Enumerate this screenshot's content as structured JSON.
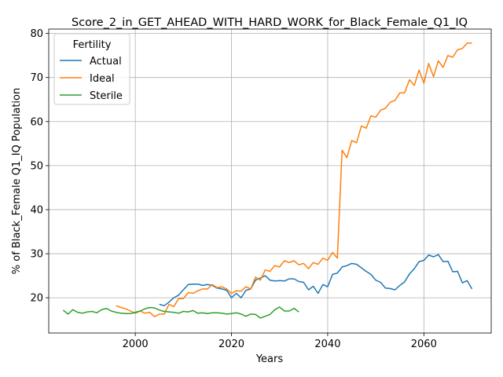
{
  "chart_data": {
    "type": "line",
    "title": "Score_2_in_GET_AHEAD_WITH_HARD_WORK_for_Black_Female_Q1_IQ",
    "xlabel": "Years",
    "ylabel": "% of Black_Female Q1_IQ Population",
    "xlim": [
      1982,
      2074
    ],
    "ylim": [
      12,
      81
    ],
    "xticks": [
      2000,
      2020,
      2040,
      2060
    ],
    "yticks": [
      20,
      30,
      40,
      50,
      60,
      70,
      80
    ],
    "grid": true,
    "legend": {
      "title": "Fertility",
      "placement": "top-left"
    },
    "series": [
      {
        "name": "Actual",
        "color": "#1f77b4",
        "x": [
          2005,
          2006,
          2007,
          2008,
          2009,
          2010,
          2011,
          2012,
          2013,
          2014,
          2015,
          2016,
          2017,
          2018,
          2019,
          2020,
          2021,
          2022,
          2023,
          2024,
          2025,
          2026,
          2027,
          2028,
          2029,
          2030,
          2031,
          2032,
          2033,
          2034,
          2035,
          2036,
          2037,
          2038,
          2039,
          2040,
          2041,
          2042,
          2043,
          2044,
          2045,
          2046,
          2047,
          2048,
          2049,
          2050,
          2051,
          2052,
          2053,
          2054,
          2055,
          2056,
          2057,
          2058,
          2059,
          2060,
          2061,
          2062,
          2063,
          2064,
          2065,
          2066,
          2067,
          2068,
          2069,
          2070
        ],
        "y": [
          18.5,
          18.2,
          19.0,
          20.0,
          20.6,
          21.8,
          23.0,
          23.1,
          23.1,
          22.8,
          23.0,
          22.8,
          22.2,
          22.0,
          21.7,
          20.0,
          21.0,
          20.0,
          21.7,
          22.0,
          24.0,
          24.5,
          25.0,
          24.0,
          23.8,
          23.9,
          23.8,
          24.3,
          24.3,
          23.7,
          23.5,
          21.8,
          22.6,
          21.0,
          23.0,
          22.5,
          25.3,
          25.6,
          27.0,
          27.3,
          27.8,
          27.6,
          26.8,
          26.0,
          25.3,
          24.0,
          23.5,
          22.2,
          22.1,
          21.8,
          22.8,
          23.6,
          25.4,
          26.6,
          28.2,
          28.5,
          29.7,
          29.3,
          29.8,
          28.2,
          28.3,
          25.9,
          26.0,
          23.4,
          23.9,
          22.0
        ]
      },
      {
        "name": "Ideal",
        "color": "#ff7f0e",
        "x": [
          1996,
          1997,
          1998,
          1999,
          2000,
          2001,
          2002,
          2003,
          2004,
          2005,
          2006,
          2007,
          2008,
          2009,
          2010,
          2011,
          2012,
          2013,
          2014,
          2015,
          2016,
          2017,
          2018,
          2019,
          2020,
          2021,
          2022,
          2023,
          2024,
          2025,
          2026,
          2027,
          2028,
          2029,
          2030,
          2031,
          2032,
          2033,
          2034,
          2035,
          2036,
          2037,
          2038,
          2039,
          2040,
          2041,
          2042,
          2043,
          2044,
          2045,
          2046,
          2047,
          2048,
          2049,
          2050,
          2051,
          2052,
          2053,
          2054,
          2055,
          2056,
          2057,
          2058,
          2059,
          2060,
          2061,
          2062,
          2063,
          2064,
          2065,
          2066,
          2067,
          2068,
          2069,
          2070
        ],
        "y": [
          18.2,
          17.8,
          17.5,
          17.0,
          16.5,
          17.0,
          16.5,
          16.7,
          15.7,
          16.3,
          16.3,
          18.5,
          18.0,
          19.8,
          19.8,
          21.2,
          21.0,
          21.6,
          22.0,
          22.0,
          23.0,
          22.3,
          22.5,
          22.0,
          21.0,
          21.6,
          21.5,
          22.5,
          22.0,
          24.7,
          24.0,
          26.3,
          26.0,
          27.3,
          27.0,
          28.4,
          28.0,
          28.4,
          27.5,
          27.8,
          26.6,
          28.0,
          27.6,
          29.0,
          28.5,
          30.3,
          29.0,
          53.5,
          51.8,
          55.7,
          55.2,
          59.0,
          58.5,
          61.3,
          61.0,
          62.6,
          63.0,
          64.4,
          64.8,
          66.5,
          66.5,
          69.5,
          68.2,
          71.7,
          68.7,
          73.2,
          70.2,
          73.8,
          72.3,
          75.0,
          74.6,
          76.3,
          76.6,
          77.8,
          77.8
        ]
      },
      {
        "name": "Sterile",
        "color": "#2ca02c",
        "x": [
          1985,
          1986,
          1987,
          1988,
          1989,
          1990,
          1991,
          1992,
          1993,
          1994,
          1995,
          1996,
          1997,
          1998,
          1999,
          2000,
          2001,
          2002,
          2003,
          2004,
          2005,
          2006,
          2007,
          2008,
          2009,
          2010,
          2011,
          2012,
          2013,
          2014,
          2015,
          2016,
          2017,
          2018,
          2019,
          2020,
          2021,
          2022,
          2023,
          2024,
          2025,
          2026,
          2027,
          2028,
          2029,
          2030,
          2031,
          2032,
          2033,
          2034
        ],
        "y": [
          17.2,
          16.3,
          17.3,
          16.7,
          16.5,
          16.8,
          16.9,
          16.6,
          17.3,
          17.6,
          17.0,
          16.7,
          16.5,
          16.4,
          16.4,
          16.7,
          17.0,
          17.5,
          17.8,
          17.7,
          17.2,
          16.9,
          16.8,
          16.7,
          16.5,
          16.9,
          16.8,
          17.1,
          16.5,
          16.6,
          16.4,
          16.6,
          16.6,
          16.5,
          16.3,
          16.4,
          16.6,
          16.3,
          15.8,
          16.3,
          16.2,
          15.4,
          15.8,
          16.2,
          17.3,
          17.9,
          17.0,
          17.0,
          17.6,
          16.8
        ]
      }
    ]
  }
}
